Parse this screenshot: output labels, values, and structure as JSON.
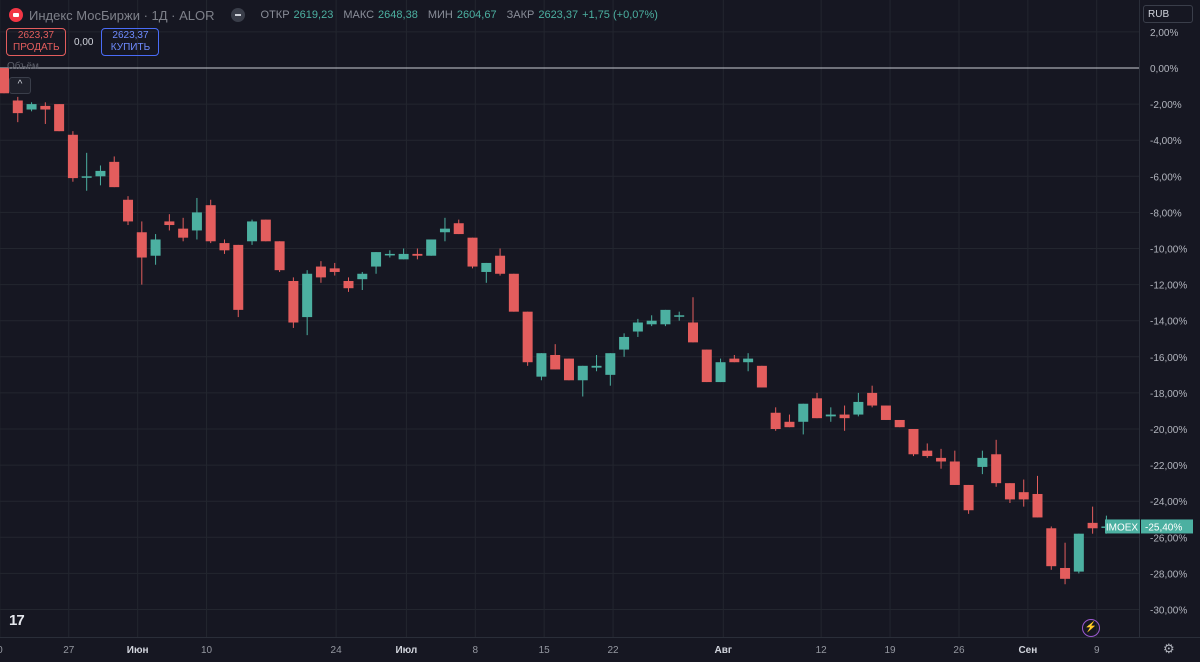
{
  "header": {
    "symbol": "Индекс МосБиржи · 1Д · ALOR",
    "open_label": "ОТКР",
    "open": "2619,23",
    "high_label": "МАКС",
    "high": "2648,38",
    "low_label": "МИН",
    "low": "2604,67",
    "close_label": "ЗАКР",
    "close": "2623,37",
    "change": "+1,75 (+0,07%)"
  },
  "trade": {
    "sell_price": "2623,37",
    "sell_label": "ПРОДАТЬ",
    "spread": "0,00",
    "buy_price": "2623,37",
    "buy_label": "КУПИТЬ"
  },
  "volume_label": "Объём",
  "volume_toggle": "^",
  "currency": "RUB",
  "logo": "17",
  "colors": {
    "up": "#4cb0a1",
    "down": "#e35d5d",
    "background": "#161722",
    "grid": "#23262f"
  },
  "chart_data": {
    "type": "candlestick",
    "y_unit": "%",
    "ylim": [
      -31,
      2.5
    ],
    "y_ticks": [
      "2,00%",
      "0,00%",
      "-2,00%",
      "-4,00%",
      "-6,00%",
      "-8,00%",
      "-10,00%",
      "-12,00%",
      "-14,00%",
      "-16,00%",
      "-18,00%",
      "-20,00%",
      "-22,00%",
      "-24,00%",
      "-26,00%",
      "-28,00%",
      "-30,00%"
    ],
    "y_tick_values": [
      2,
      0,
      -2,
      -4,
      -6,
      -8,
      -10,
      -12,
      -14,
      -16,
      -18,
      -20,
      -22,
      -24,
      -26,
      -28,
      -30
    ],
    "x_ticks": [
      {
        "label": "0",
        "bar": -0.3,
        "bold": false
      },
      {
        "label": "27",
        "bar": 4.7,
        "bold": false
      },
      {
        "label": "Июн",
        "bar": 9.7,
        "bold": true
      },
      {
        "label": "10",
        "bar": 14.7,
        "bold": false
      },
      {
        "label": "24",
        "bar": 24.1,
        "bold": false
      },
      {
        "label": "Июл",
        "bar": 29.2,
        "bold": true
      },
      {
        "label": "8",
        "bar": 34.2,
        "bold": false
      },
      {
        "label": "15",
        "bar": 39.2,
        "bold": false
      },
      {
        "label": "22",
        "bar": 44.2,
        "bold": false
      },
      {
        "label": "Авг",
        "bar": 52.2,
        "bold": true
      },
      {
        "label": "12",
        "bar": 59.3,
        "bold": false
      },
      {
        "label": "19",
        "bar": 64.3,
        "bold": false
      },
      {
        "label": "26",
        "bar": 69.3,
        "bold": false
      },
      {
        "label": "Сен",
        "bar": 74.3,
        "bold": true
      },
      {
        "label": "9",
        "bar": 79.3,
        "bold": false
      }
    ],
    "series_label": "IMOEX",
    "last_value_label": "-25,40%",
    "last_value": -25.4,
    "reference_line": 0,
    "candles": [
      {
        "o": 0,
        "h": 0,
        "l": -1.4,
        "c": -1.4
      },
      {
        "o": -1.8,
        "h": -1.6,
        "l": -3.0,
        "c": -2.5
      },
      {
        "o": -2.3,
        "h": -1.9,
        "l": -2.4,
        "c": -2.0
      },
      {
        "o": -2.1,
        "h": -1.9,
        "l": -3.1,
        "c": -2.3
      },
      {
        "o": -2.0,
        "h": -2.0,
        "l": -3.3,
        "c": -3.5
      },
      {
        "o": -3.7,
        "h": -3.5,
        "l": -6.3,
        "c": -6.1
      },
      {
        "o": -6.0,
        "h": -4.7,
        "l": -6.8,
        "c": -6.0
      },
      {
        "o": -6.0,
        "h": -5.4,
        "l": -6.5,
        "c": -5.7
      },
      {
        "o": -5.2,
        "h": -4.9,
        "l": -6.6,
        "c": -6.6
      },
      {
        "o": -7.3,
        "h": -7.1,
        "l": -8.7,
        "c": -8.5
      },
      {
        "o": -9.1,
        "h": -8.5,
        "l": -12.0,
        "c": -10.5
      },
      {
        "o": -10.4,
        "h": -9.2,
        "l": -10.9,
        "c": -9.5
      },
      {
        "o": -8.5,
        "h": -8.1,
        "l": -9.0,
        "c": -8.7
      },
      {
        "o": -8.9,
        "h": -8.3,
        "l": -9.6,
        "c": -9.4
      },
      {
        "o": -9.0,
        "h": -7.2,
        "l": -9.5,
        "c": -8.0
      },
      {
        "o": -7.6,
        "h": -7.3,
        "l": -9.7,
        "c": -9.6
      },
      {
        "o": -9.7,
        "h": -9.5,
        "l": -10.3,
        "c": -10.1
      },
      {
        "o": -9.8,
        "h": -9.8,
        "l": -13.8,
        "c": -13.4
      },
      {
        "o": -9.6,
        "h": -8.4,
        "l": -9.8,
        "c": -8.5
      },
      {
        "o": -8.4,
        "h": -8.4,
        "l": -9.6,
        "c": -9.6
      },
      {
        "o": -9.6,
        "h": -9.6,
        "l": -11.3,
        "c": -11.2
      },
      {
        "o": -11.8,
        "h": -11.6,
        "l": -14.4,
        "c": -14.1
      },
      {
        "o": -13.8,
        "h": -11.2,
        "l": -14.8,
        "c": -11.4
      },
      {
        "o": -11.0,
        "h": -10.7,
        "l": -11.9,
        "c": -11.6
      },
      {
        "o": -11.1,
        "h": -10.8,
        "l": -11.5,
        "c": -11.3
      },
      {
        "o": -11.8,
        "h": -11.6,
        "l": -12.4,
        "c": -12.2
      },
      {
        "o": -11.7,
        "h": -11.3,
        "l": -12.3,
        "c": -11.4
      },
      {
        "o": -11.0,
        "h": -10.3,
        "l": -11.4,
        "c": -10.2
      },
      {
        "o": -10.3,
        "h": -10.1,
        "l": -10.5,
        "c": -10.3
      },
      {
        "o": -10.6,
        "h": -10.0,
        "l": -10.6,
        "c": -10.3
      },
      {
        "o": -10.3,
        "h": -10.0,
        "l": -10.6,
        "c": -10.4
      },
      {
        "o": -10.4,
        "h": -9.5,
        "l": -10.4,
        "c": -9.5
      },
      {
        "o": -9.1,
        "h": -8.3,
        "l": -9.6,
        "c": -8.9
      },
      {
        "o": -8.6,
        "h": -8.4,
        "l": -9.1,
        "c": -9.2
      },
      {
        "o": -9.4,
        "h": -9.4,
        "l": -11.1,
        "c": -11.0
      },
      {
        "o": -11.3,
        "h": -10.8,
        "l": -11.9,
        "c": -10.8
      },
      {
        "o": -10.4,
        "h": -10.0,
        "l": -11.5,
        "c": -11.4
      },
      {
        "o": -11.4,
        "h": -11.4,
        "l": -13.5,
        "c": -13.5
      },
      {
        "o": -13.5,
        "h": -13.5,
        "l": -16.5,
        "c": -16.3
      },
      {
        "o": -17.1,
        "h": -15.8,
        "l": -17.3,
        "c": -15.8
      },
      {
        "o": -15.9,
        "h": -15.3,
        "l": -16.7,
        "c": -16.7
      },
      {
        "o": -16.1,
        "h": -16.1,
        "l": -17.3,
        "c": -17.3
      },
      {
        "o": -17.3,
        "h": -16.7,
        "l": -18.2,
        "c": -16.5
      },
      {
        "o": -16.6,
        "h": -15.9,
        "l": -16.8,
        "c": -16.5
      },
      {
        "o": -17.0,
        "h": -15.9,
        "l": -17.6,
        "c": -15.8
      },
      {
        "o": -15.6,
        "h": -14.7,
        "l": -16.0,
        "c": -14.9
      },
      {
        "o": -14.6,
        "h": -13.9,
        "l": -14.9,
        "c": -14.1
      },
      {
        "o": -14.2,
        "h": -13.7,
        "l": -14.3,
        "c": -14.0
      },
      {
        "o": -14.2,
        "h": -13.4,
        "l": -14.3,
        "c": -13.4
      },
      {
        "o": -13.7,
        "h": -13.5,
        "l": -14.0,
        "c": -13.7
      },
      {
        "o": -14.1,
        "h": -12.7,
        "l": -15.2,
        "c": -15.2
      },
      {
        "o": -15.6,
        "h": -15.6,
        "l": -17.4,
        "c": -17.4
      },
      {
        "o": -17.4,
        "h": -16.1,
        "l": -17.4,
        "c": -16.3
      },
      {
        "o": -16.1,
        "h": -15.9,
        "l": -16.3,
        "c": -16.3
      },
      {
        "o": -16.3,
        "h": -15.8,
        "l": -16.8,
        "c": -16.1
      },
      {
        "o": -16.5,
        "h": -16.5,
        "l": -17.7,
        "c": -17.7
      },
      {
        "o": -19.1,
        "h": -18.8,
        "l": -20.1,
        "c": -20.0
      },
      {
        "o": -19.6,
        "h": -19.2,
        "l": -19.9,
        "c": -19.9
      },
      {
        "o": -19.6,
        "h": -18.6,
        "l": -20.3,
        "c": -18.6
      },
      {
        "o": -18.3,
        "h": -18.0,
        "l": -19.4,
        "c": -19.4
      },
      {
        "o": -19.3,
        "h": -18.8,
        "l": -19.6,
        "c": -19.2
      },
      {
        "o": -19.2,
        "h": -18.7,
        "l": -20.1,
        "c": -19.4
      },
      {
        "o": -19.2,
        "h": -18.0,
        "l": -19.3,
        "c": -18.5
      },
      {
        "o": -18.0,
        "h": -17.6,
        "l": -18.8,
        "c": -18.7
      },
      {
        "o": -18.7,
        "h": -18.7,
        "l": -19.5,
        "c": -19.5
      },
      {
        "o": -19.5,
        "h": -19.5,
        "l": -19.9,
        "c": -19.9
      },
      {
        "o": -20.0,
        "h": -20.0,
        "l": -21.5,
        "c": -21.4
      },
      {
        "o": -21.2,
        "h": -20.8,
        "l": -21.6,
        "c": -21.5
      },
      {
        "o": -21.6,
        "h": -21.1,
        "l": -22.2,
        "c": -21.8
      },
      {
        "o": -21.8,
        "h": -21.2,
        "l": -23.1,
        "c": -23.1
      },
      {
        "o": -23.1,
        "h": -23.1,
        "l": -24.7,
        "c": -24.5
      },
      {
        "o": -22.1,
        "h": -21.2,
        "l": -22.5,
        "c": -21.6
      },
      {
        "o": -21.4,
        "h": -20.6,
        "l": -23.2,
        "c": -23.0
      },
      {
        "o": -23.0,
        "h": -23.0,
        "l": -24.1,
        "c": -23.9
      },
      {
        "o": -23.5,
        "h": -22.8,
        "l": -24.3,
        "c": -23.9
      },
      {
        "o": -23.6,
        "h": -22.6,
        "l": -24.8,
        "c": -24.9
      },
      {
        "o": -25.5,
        "h": -25.4,
        "l": -27.8,
        "c": -27.6
      },
      {
        "o": -27.7,
        "h": -26.3,
        "l": -28.6,
        "c": -28.3
      },
      {
        "o": -27.9,
        "h": -25.9,
        "l": -28.0,
        "c": -25.8
      },
      {
        "o": -25.2,
        "h": -24.3,
        "l": -25.8,
        "c": -25.5
      },
      {
        "o": -25.4,
        "h": -24.8,
        "l": -25.8,
        "c": -25.4
      }
    ]
  }
}
